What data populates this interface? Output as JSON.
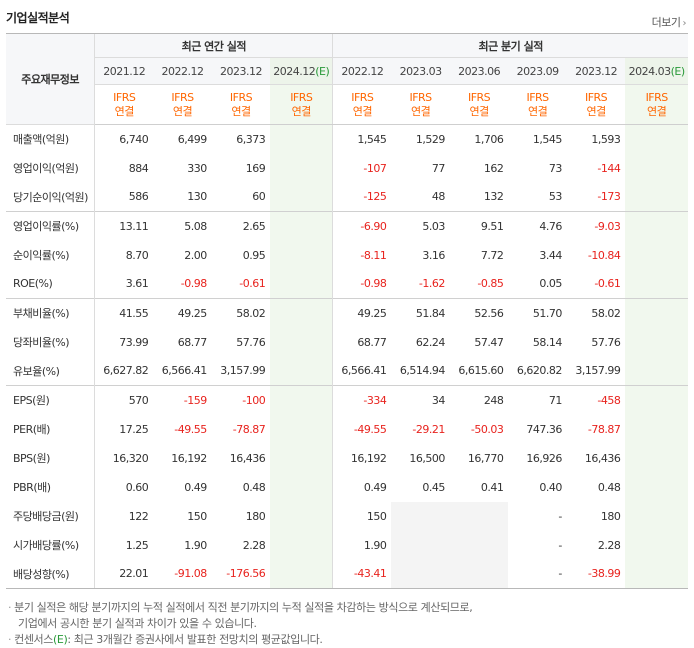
{
  "title": "기업실적분석",
  "more_label": "더보기",
  "header": {
    "row_label": "주요재무정보",
    "annual_group": "최근 연간 실적",
    "quarter_group": "최근 분기 실적",
    "annual_periods": [
      "2021.12",
      "2022.12",
      "2023.12",
      "2024.12"
    ],
    "annual_estimate_mark": "(E)",
    "quarter_periods": [
      "2022.12",
      "2023.03",
      "2023.06",
      "2023.09",
      "2023.12",
      "2024.03"
    ],
    "quarter_estimate_mark": "(E)",
    "ifrs_line1": "IFRS",
    "ifrs_line2": "연결"
  },
  "rows": [
    {
      "label": "매출액(억원)",
      "annual": [
        "6,740",
        "6,499",
        "6,373",
        ""
      ],
      "quarter": [
        "1,545",
        "1,529",
        "1,706",
        "1,545",
        "1,593",
        ""
      ]
    },
    {
      "label": "영업이익(억원)",
      "annual": [
        "884",
        "330",
        "169",
        ""
      ],
      "quarter": [
        "-107",
        "77",
        "162",
        "73",
        "-144",
        ""
      ]
    },
    {
      "label": "당기순이익(억원)",
      "annual": [
        "586",
        "130",
        "60",
        ""
      ],
      "quarter": [
        "-125",
        "48",
        "132",
        "53",
        "-173",
        ""
      ]
    },
    {
      "label": "영업이익률(%)",
      "annual": [
        "13.11",
        "5.08",
        "2.65",
        ""
      ],
      "quarter": [
        "-6.90",
        "5.03",
        "9.51",
        "4.76",
        "-9.03",
        ""
      ]
    },
    {
      "label": "순이익률(%)",
      "annual": [
        "8.70",
        "2.00",
        "0.95",
        ""
      ],
      "quarter": [
        "-8.11",
        "3.16",
        "7.72",
        "3.44",
        "-10.84",
        ""
      ]
    },
    {
      "label": "ROE(%)",
      "annual": [
        "3.61",
        "-0.98",
        "-0.61",
        ""
      ],
      "quarter": [
        "-0.98",
        "-1.62",
        "-0.85",
        "0.05",
        "-0.61",
        ""
      ]
    },
    {
      "label": "부채비율(%)",
      "annual": [
        "41.55",
        "49.25",
        "58.02",
        ""
      ],
      "quarter": [
        "49.25",
        "51.84",
        "52.56",
        "51.70",
        "58.02",
        ""
      ]
    },
    {
      "label": "당좌비율(%)",
      "annual": [
        "73.99",
        "68.77",
        "57.76",
        ""
      ],
      "quarter": [
        "68.77",
        "62.24",
        "57.47",
        "58.14",
        "57.76",
        ""
      ]
    },
    {
      "label": "유보율(%)",
      "annual": [
        "6,627.82",
        "6,566.41",
        "3,157.99",
        ""
      ],
      "quarter": [
        "6,566.41",
        "6,514.94",
        "6,615.60",
        "6,620.82",
        "3,157.99",
        ""
      ]
    },
    {
      "label": "EPS(원)",
      "annual": [
        "570",
        "-159",
        "-100",
        ""
      ],
      "quarter": [
        "-334",
        "34",
        "248",
        "71",
        "-458",
        ""
      ]
    },
    {
      "label": "PER(배)",
      "annual": [
        "17.25",
        "-49.55",
        "-78.87",
        ""
      ],
      "quarter": [
        "-49.55",
        "-29.21",
        "-50.03",
        "747.36",
        "-78.87",
        ""
      ]
    },
    {
      "label": "BPS(원)",
      "annual": [
        "16,320",
        "16,192",
        "16,436",
        ""
      ],
      "quarter": [
        "16,192",
        "16,500",
        "16,770",
        "16,926",
        "16,436",
        ""
      ]
    },
    {
      "label": "PBR(배)",
      "annual": [
        "0.60",
        "0.49",
        "0.48",
        ""
      ],
      "quarter": [
        "0.49",
        "0.45",
        "0.41",
        "0.40",
        "0.48",
        ""
      ]
    },
    {
      "label": "주당배당금(원)",
      "annual": [
        "122",
        "150",
        "180",
        ""
      ],
      "quarter": [
        "150",
        "",
        "",
        "-",
        "180",
        ""
      ]
    },
    {
      "label": "시가배당률(%)",
      "annual": [
        "1.25",
        "1.90",
        "2.28",
        ""
      ],
      "quarter": [
        "1.90",
        "",
        "",
        "-",
        "2.28",
        ""
      ]
    },
    {
      "label": "배당성향(%)",
      "annual": [
        "22.01",
        "-91.08",
        "-176.56",
        ""
      ],
      "quarter": [
        "-43.41",
        "",
        "",
        "-",
        "-38.99",
        ""
      ]
    }
  ],
  "notes": {
    "line1": "분기 실적은 해당 분기까지의 누적 실적에서 직전 분기까지의 누적 실적을 차감하는 방식으로 계산되므로,",
    "line2": "기업에서 공시한 분기 실적과 차이가 있을 수 있습니다.",
    "line3_prefix": "컨센서스",
    "line3_mark": "(E)",
    "line3_suffix": ": 최근 3개월간 증권사에서 발표한 전망치의 평균값입니다."
  },
  "colors": {
    "negative": "#e8231e",
    "ifrs": "#ff6600",
    "estimate": "#2a9a3a",
    "estimate_bg": "#f1f8ee",
    "header_bg": "#f6f7f9"
  }
}
